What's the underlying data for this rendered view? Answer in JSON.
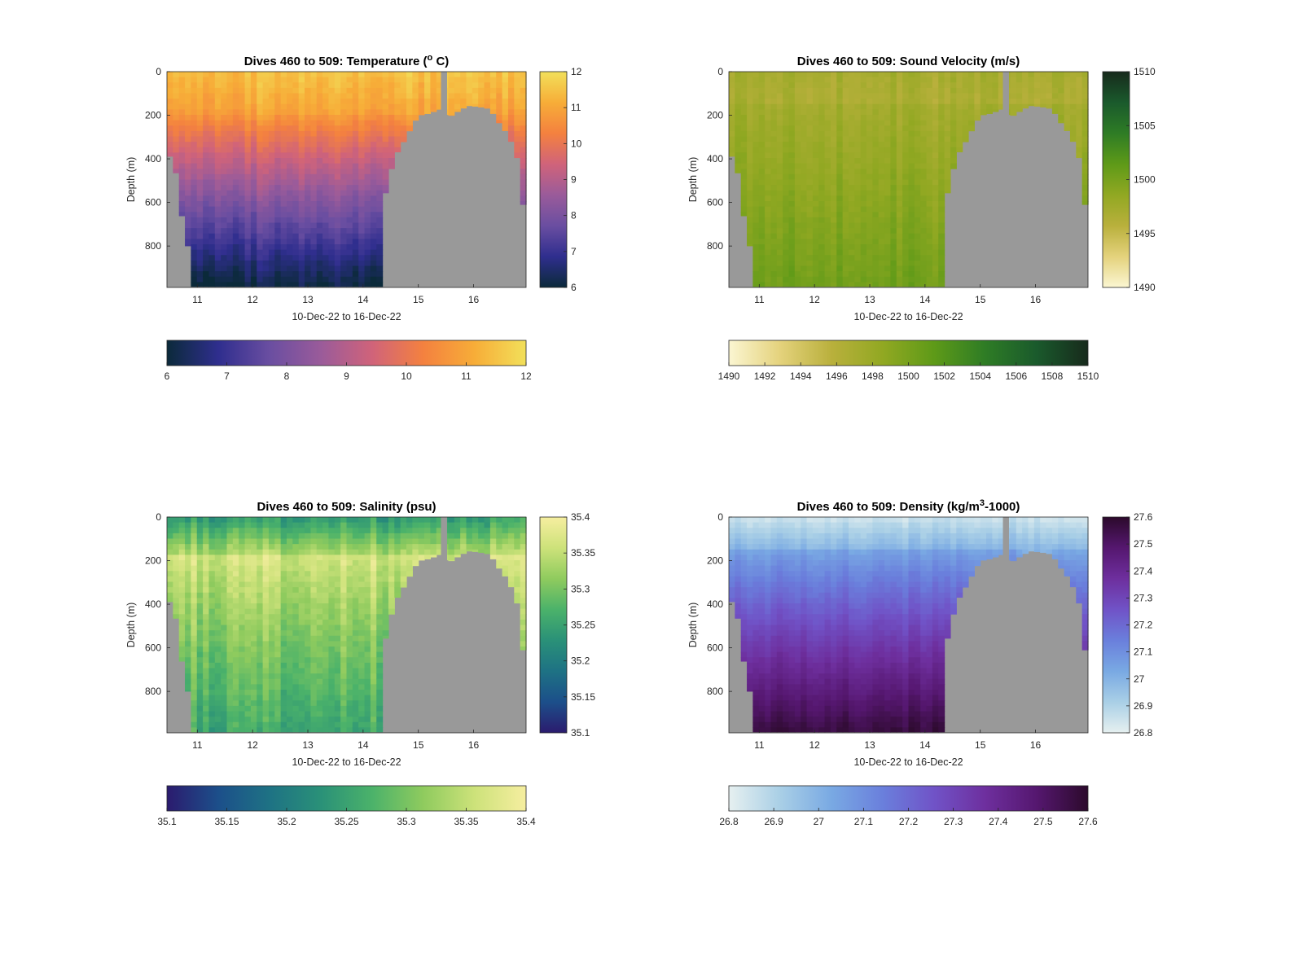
{
  "figure": {
    "background": "#ffffff",
    "mask_color": "#999999"
  },
  "chart_data": [
    {
      "type": "heatmap",
      "id": "temperature",
      "title": "Dives 460 to 509: Temperature (° C)",
      "title_parts": [
        "Dives 460 to 509: Temperature (",
        "o",
        " C)"
      ],
      "ylabel": "Depth (m)",
      "xlabel": "10-Dec-22 to 16-Dec-22",
      "x_ticks": [
        "11",
        "12",
        "13",
        "14",
        "15",
        "16"
      ],
      "y_ticks": [
        "0",
        "200",
        "400",
        "600",
        "800"
      ],
      "xlim": [
        10.45,
        16.95
      ],
      "ylim": [
        0,
        990
      ],
      "clim": [
        6,
        12
      ],
      "colormap": [
        "#0b2a3a",
        "#2f2e8e",
        "#6a4ea1",
        "#9a5b9a",
        "#d0637a",
        "#f4813f",
        "#f7ad38",
        "#f2e05a"
      ],
      "colorbar_ticks": [
        "6",
        "7",
        "8",
        "9",
        "10",
        "11",
        "12"
      ],
      "horizontal_colorbar_ticks": [
        "6",
        "7",
        "8",
        "9",
        "10",
        "11",
        "12"
      ]
    },
    {
      "type": "heatmap",
      "id": "sound-velocity",
      "title": "Dives 460 to 509: Sound Velocity (m/s)",
      "ylabel": "Depth (m)",
      "xlabel": "10-Dec-22 to 16-Dec-22",
      "x_ticks": [
        "11",
        "12",
        "13",
        "14",
        "15",
        "16"
      ],
      "y_ticks": [
        "0",
        "200",
        "400",
        "600",
        "800"
      ],
      "xlim": [
        10.45,
        16.95
      ],
      "ylim": [
        0,
        990
      ],
      "clim": [
        1490,
        1510
      ],
      "colormap": [
        "#fbf6d2",
        "#e4d27c",
        "#b9b03c",
        "#91a822",
        "#5e9a18",
        "#2e7c25",
        "#1a5a2c",
        "#172a1c"
      ],
      "colorbar_ticks": [
        "1490",
        "1495",
        "1500",
        "1505",
        "1510"
      ],
      "horizontal_colorbar_ticks": [
        "1490",
        "1492",
        "1494",
        "1496",
        "1498",
        "1500",
        "1502",
        "1504",
        "1506",
        "1508",
        "1510"
      ]
    },
    {
      "type": "heatmap",
      "id": "salinity",
      "title": "Dives 460 to 509: Salinity (psu)",
      "ylabel": "Depth (m)",
      "xlabel": "10-Dec-22 to 16-Dec-22",
      "x_ticks": [
        "11",
        "12",
        "13",
        "14",
        "15",
        "16"
      ],
      "y_ticks": [
        "0",
        "200",
        "400",
        "600",
        "800"
      ],
      "xlim": [
        10.45,
        16.95
      ],
      "ylim": [
        0,
        990
      ],
      "clim": [
        35.1,
        35.4
      ],
      "colormap": [
        "#2b1b6e",
        "#1c4f8a",
        "#1e7284",
        "#2a9178",
        "#4bb26a",
        "#8fcb5e",
        "#cde27a",
        "#f6eea0"
      ],
      "colorbar_ticks": [
        "35.1",
        "35.15",
        "35.2",
        "35.25",
        "35.3",
        "35.35",
        "35.4"
      ],
      "horizontal_colorbar_ticks": [
        "35.1",
        "35.15",
        "35.2",
        "35.25",
        "35.3",
        "35.35",
        "35.4"
      ]
    },
    {
      "type": "heatmap",
      "id": "density",
      "title": "Dives 460 to 509: Density (kg/m³-1000)",
      "title_parts": [
        "Dives 460 to 509: Density (kg/m",
        "3",
        "-1000)"
      ],
      "ylabel": "Depth (m)",
      "xlabel": "10-Dec-22 to 16-Dec-22",
      "x_ticks": [
        "11",
        "12",
        "13",
        "14",
        "15",
        "16"
      ],
      "y_ticks": [
        "0",
        "200",
        "400",
        "600",
        "800"
      ],
      "xlim": [
        10.45,
        16.95
      ],
      "ylim": [
        0,
        990
      ],
      "clim": [
        26.8,
        27.6
      ],
      "colormap": [
        "#e6f0f0",
        "#a9cfe6",
        "#79a9e3",
        "#6a7fdc",
        "#7053c7",
        "#6e2f9e",
        "#55176f",
        "#2c0a2c"
      ],
      "colorbar_ticks": [
        "27.6",
        "27.5",
        "27.4",
        "27.3",
        "27.2",
        "27.1",
        "27",
        "26.9",
        "26.8"
      ],
      "horizontal_colorbar_ticks": [
        "26.8",
        "26.9",
        "27",
        "27.1",
        "27.2",
        "27.3",
        "27.4",
        "27.5",
        "27.6"
      ]
    }
  ]
}
